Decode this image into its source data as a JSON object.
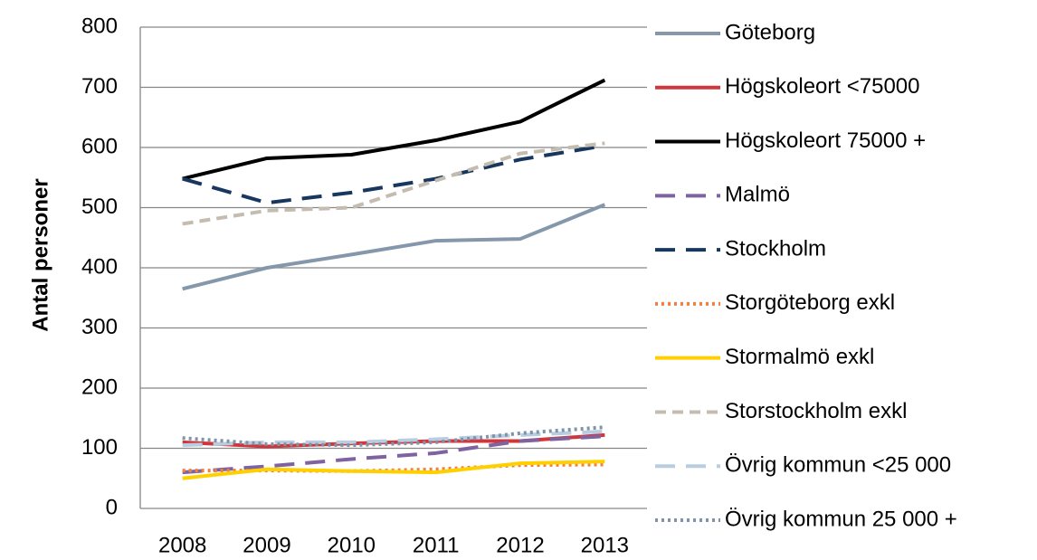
{
  "chart_data": {
    "type": "line",
    "y_label": "Antal personer",
    "categories": [
      "2008",
      "2009",
      "2010",
      "2011",
      "2012",
      "2013"
    ],
    "ylim": [
      0,
      800
    ],
    "yticks": [
      0,
      100,
      200,
      300,
      400,
      500,
      600,
      700,
      800
    ],
    "grid": true,
    "legend": "right",
    "series": [
      {
        "name": "Göteborg",
        "color": "#8497ab",
        "dash": "solid",
        "values": [
          365,
          400,
          422,
          445,
          448,
          505
        ]
      },
      {
        "name": "Högskoleort <75000",
        "color": "#d0373d",
        "dash": "solid",
        "values": [
          110,
          103,
          108,
          112,
          112,
          122
        ]
      },
      {
        "name": "Högskoleort 75000 +",
        "color": "#000000",
        "dash": "solid",
        "values": [
          548,
          582,
          588,
          612,
          643,
          712
        ]
      },
      {
        "name": "Malmö",
        "color": "#7f62a0",
        "dash": "longdash",
        "values": [
          60,
          70,
          82,
          92,
          112,
          120
        ]
      },
      {
        "name": "Stockholm",
        "color": "#17375e",
        "dash": "longdash",
        "values": [
          548,
          508,
          525,
          548,
          580,
          603
        ]
      },
      {
        "name": "Storgöteborg exkl",
        "color": "#f08040",
        "dash": "dot",
        "values": [
          63,
          63,
          62,
          65,
          72,
          73
        ]
      },
      {
        "name": "Stormalmö exkl",
        "color": "#ffd000",
        "dash": "solid",
        "values": [
          50,
          65,
          62,
          60,
          75,
          78
        ]
      },
      {
        "name": "Storstockholm exkl",
        "color": "#c4bcb0",
        "dash": "dash",
        "values": [
          473,
          495,
          500,
          545,
          590,
          607
        ]
      },
      {
        "name": "Övrig kommun <25 000",
        "color": "#b9cde0",
        "dash": "longdash",
        "values": [
          105,
          110,
          110,
          115,
          122,
          128
        ]
      },
      {
        "name": "Övrig kommun 25 000 +",
        "color": "#7f93aa",
        "dash": "dot",
        "values": [
          117,
          107,
          105,
          110,
          125,
          135
        ]
      }
    ]
  }
}
